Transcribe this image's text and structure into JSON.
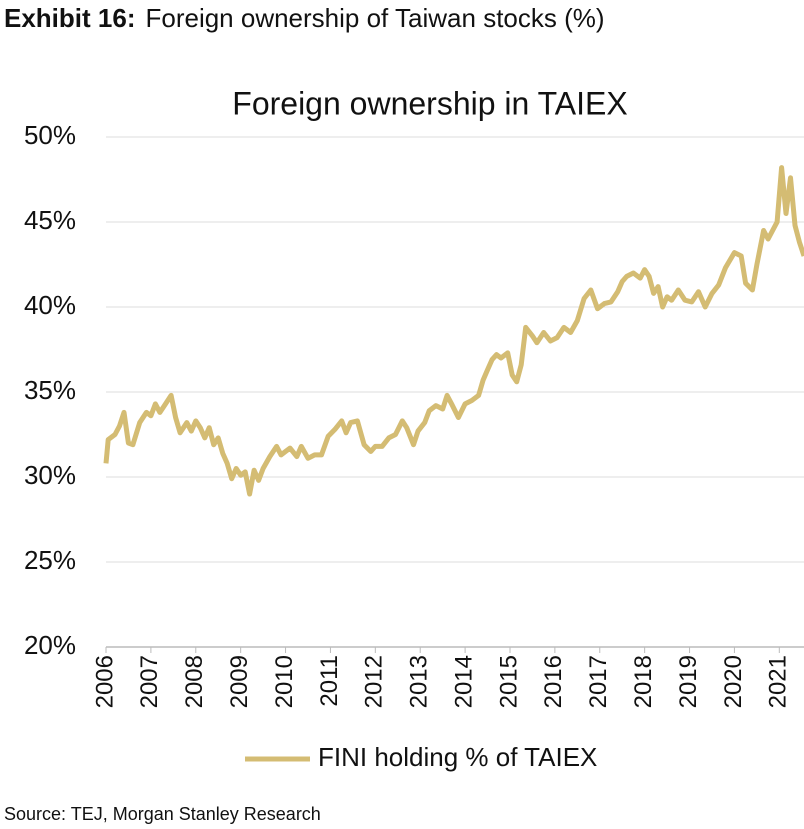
{
  "header": {
    "label": "Exhibit 16:",
    "title": "Foreign ownership of Taiwan stocks (%)"
  },
  "chart_data": {
    "type": "line",
    "title": "Foreign ownership in TAIEX",
    "x": [
      2006.0,
      2006.05,
      2006.2,
      2006.3,
      2006.4,
      2006.5,
      2006.6,
      2006.75,
      2006.9,
      2007.0,
      2007.1,
      2007.2,
      2007.3,
      2007.45,
      2007.55,
      2007.65,
      2007.8,
      2007.9,
      2008.0,
      2008.1,
      2008.2,
      2008.3,
      2008.4,
      2008.5,
      2008.6,
      2008.7,
      2008.8,
      2008.9,
      2009.0,
      2009.1,
      2009.2,
      2009.3,
      2009.4,
      2009.5,
      2009.65,
      2009.8,
      2009.9,
      2010.0,
      2010.1,
      2010.25,
      2010.35,
      2010.5,
      2010.65,
      2010.8,
      2010.95,
      2011.1,
      2011.25,
      2011.35,
      2011.45,
      2011.6,
      2011.75,
      2011.9,
      2012.0,
      2012.15,
      2012.3,
      2012.45,
      2012.6,
      2012.7,
      2012.85,
      2012.95,
      2013.1,
      2013.2,
      2013.35,
      2013.5,
      2013.6,
      2013.7,
      2013.85,
      2014.0,
      2014.15,
      2014.3,
      2014.4,
      2014.5,
      2014.6,
      2014.7,
      2014.8,
      2014.95,
      2015.05,
      2015.15,
      2015.25,
      2015.35,
      2015.5,
      2015.6,
      2015.75,
      2015.9,
      2016.05,
      2016.2,
      2016.35,
      2016.5,
      2016.65,
      2016.8,
      2016.95,
      2017.1,
      2017.25,
      2017.4,
      2017.5,
      2017.6,
      2017.75,
      2017.9,
      2018.0,
      2018.1,
      2018.2,
      2018.3,
      2018.4,
      2018.5,
      2018.6,
      2018.75,
      2018.9,
      2019.05,
      2019.2,
      2019.35,
      2019.5,
      2019.65,
      2019.8,
      2020.0,
      2020.15,
      2020.25,
      2020.4,
      2020.5,
      2020.65,
      2020.75,
      2020.85,
      2020.95,
      2021.05,
      2021.15,
      2021.25,
      2021.35,
      2021.45,
      2021.55
    ],
    "series": [
      {
        "name": "FINI holding % of TAIEX",
        "color": "#d4bc73",
        "values": [
          30.8,
          32.2,
          32.5,
          33.0,
          33.8,
          32.0,
          31.9,
          33.2,
          33.8,
          33.6,
          34.3,
          33.8,
          34.2,
          34.8,
          33.5,
          32.6,
          33.2,
          32.7,
          33.3,
          32.9,
          32.3,
          32.9,
          31.9,
          32.3,
          31.4,
          30.8,
          29.9,
          30.5,
          30.1,
          30.3,
          29.0,
          30.4,
          29.8,
          30.5,
          31.2,
          31.8,
          31.3,
          31.5,
          31.7,
          31.2,
          31.8,
          31.1,
          31.3,
          31.3,
          32.4,
          32.8,
          33.3,
          32.6,
          33.2,
          33.3,
          31.9,
          31.5,
          31.8,
          31.8,
          32.3,
          32.5,
          33.3,
          32.9,
          31.9,
          32.7,
          33.2,
          33.9,
          34.2,
          34.0,
          34.8,
          34.3,
          33.5,
          34.3,
          34.5,
          34.8,
          35.7,
          36.3,
          36.9,
          37.2,
          37.0,
          37.3,
          36.0,
          35.6,
          36.6,
          38.8,
          38.3,
          37.9,
          38.5,
          38.0,
          38.2,
          38.8,
          38.5,
          39.2,
          40.5,
          41.0,
          39.9,
          40.2,
          40.3,
          40.9,
          41.5,
          41.8,
          42.0,
          41.7,
          42.2,
          41.8,
          40.8,
          41.2,
          40.0,
          40.6,
          40.4,
          41.0,
          40.4,
          40.3,
          40.9,
          40.0,
          40.8,
          41.3,
          42.3,
          43.2,
          43.0,
          41.4,
          41.0,
          42.5,
          44.5,
          44.0,
          44.5,
          45.0,
          48.2,
          45.5,
          47.6,
          44.8,
          43.8,
          43.0
        ]
      }
    ],
    "xlim": [
      2006,
      2021.55
    ],
    "xticks": [
      2006,
      2007,
      2008,
      2009,
      2010,
      2011,
      2012,
      2013,
      2014,
      2015,
      2016,
      2017,
      2018,
      2019,
      2020,
      2021
    ],
    "ylim": [
      20,
      50
    ],
    "yticks": [
      {
        "value": 20,
        "label": "20%"
      },
      {
        "value": 25,
        "label": "25%"
      },
      {
        "value": 30,
        "label": "30%"
      },
      {
        "value": 35,
        "label": "35%"
      },
      {
        "value": 40,
        "label": "40%"
      },
      {
        "value": 45,
        "label": "45%"
      },
      {
        "value": 50,
        "label": "50%"
      }
    ],
    "grid": true,
    "legend": "bottom"
  },
  "source": "Source: TEJ, Morgan Stanley Research"
}
